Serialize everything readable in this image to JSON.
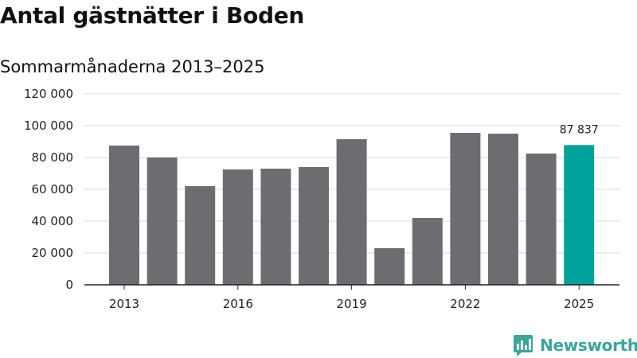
{
  "header": {
    "title": "Antal gästnätter i Boden",
    "subtitle": "Sommarmånaderna 2013–2025"
  },
  "brand": {
    "name": "Newsworthy",
    "color": "#3aa59b",
    "icon": "newsworthy-logo-icon"
  },
  "colors": {
    "bar": "#6d6c71",
    "highlight": "#00a39b",
    "grid": "#d9d9d9",
    "axis": "#222222"
  },
  "chart_data": {
    "type": "bar",
    "title": "Antal gästnätter i Boden",
    "subtitle": "Sommarmånaderna 2013–2025",
    "xlabel": "",
    "ylabel": "",
    "categories": [
      "2013",
      "2014",
      "2015",
      "2016",
      "2017",
      "2018",
      "2019",
      "2020",
      "2021",
      "2022",
      "2023",
      "2024",
      "2025"
    ],
    "values": [
      87500,
      80000,
      62000,
      72500,
      73000,
      74000,
      91500,
      23000,
      42000,
      95500,
      95000,
      82500,
      87837
    ],
    "x_tick_labels": [
      "2013",
      "2016",
      "2019",
      "2022",
      "2025"
    ],
    "y_ticks": [
      0,
      20000,
      40000,
      60000,
      80000,
      100000,
      120000
    ],
    "y_tick_labels": [
      "0",
      "20 000",
      "40 000",
      "60 000",
      "80 000",
      "100 000",
      "120 000"
    ],
    "ylim": [
      0,
      120000
    ],
    "grid": true,
    "highlight_category": "2025",
    "data_labels": [
      {
        "category": "2025",
        "text": "87 837"
      }
    ]
  }
}
